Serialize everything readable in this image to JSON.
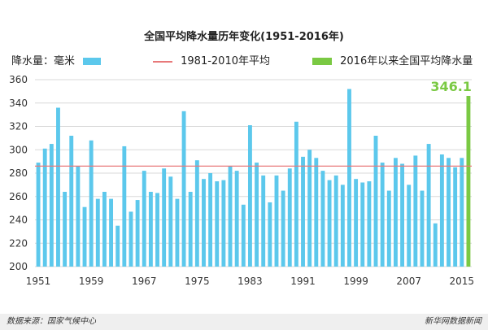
{
  "chart_data": {
    "type": "bar",
    "title": "全国平均降水量历年变化(1951-2016年)",
    "ylabel": "降水量：毫米",
    "ylim": [
      200,
      360
    ],
    "yticks": [
      200,
      220,
      240,
      260,
      280,
      300,
      320,
      340,
      360
    ],
    "xticks": [
      "1951",
      "1959",
      "1967",
      "1975",
      "1983",
      "1991",
      "1999",
      "2007",
      "2015"
    ],
    "series_name": "降水量：毫米",
    "years": [
      1951,
      1952,
      1953,
      1954,
      1955,
      1956,
      1957,
      1958,
      1959,
      1960,
      1961,
      1962,
      1963,
      1964,
      1965,
      1966,
      1967,
      1968,
      1969,
      1970,
      1971,
      1972,
      1973,
      1974,
      1975,
      1976,
      1977,
      1978,
      1979,
      1980,
      1981,
      1982,
      1983,
      1984,
      1985,
      1986,
      1987,
      1988,
      1989,
      1990,
      1991,
      1992,
      1993,
      1994,
      1995,
      1996,
      1997,
      1998,
      1999,
      2000,
      2001,
      2002,
      2003,
      2004,
      2005,
      2006,
      2007,
      2008,
      2009,
      2010,
      2011,
      2012,
      2013,
      2014,
      2015
    ],
    "values": [
      289,
      301,
      305,
      336,
      264,
      312,
      286,
      251,
      308,
      258,
      264,
      258,
      235,
      303,
      247,
      257,
      282,
      264,
      263,
      284,
      277,
      258,
      333,
      264,
      291,
      275,
      280,
      273,
      274,
      286,
      282,
      253,
      321,
      289,
      278,
      255,
      278,
      265,
      284,
      324,
      294,
      300,
      293,
      282,
      274,
      278,
      270,
      352,
      275,
      272,
      273,
      312,
      289,
      265,
      293,
      288,
      270,
      295,
      265,
      305,
      237,
      296,
      293,
      285,
      293
    ],
    "average": {
      "label": "1981-2010年平均",
      "value": 286
    },
    "highlight": {
      "year": 2016,
      "value": 346.1,
      "label": "2016年以来全国平均降水量",
      "value_label": "346.1"
    },
    "colors": {
      "bar": "#5cc8ec",
      "highlight": "#7ac943",
      "average": "#e8797a",
      "grid": "#d8d8d8"
    }
  },
  "footer": {
    "source": "数据来源：国家气候中心",
    "brand": "新华网数据新闻"
  },
  "watermark": "新华网"
}
